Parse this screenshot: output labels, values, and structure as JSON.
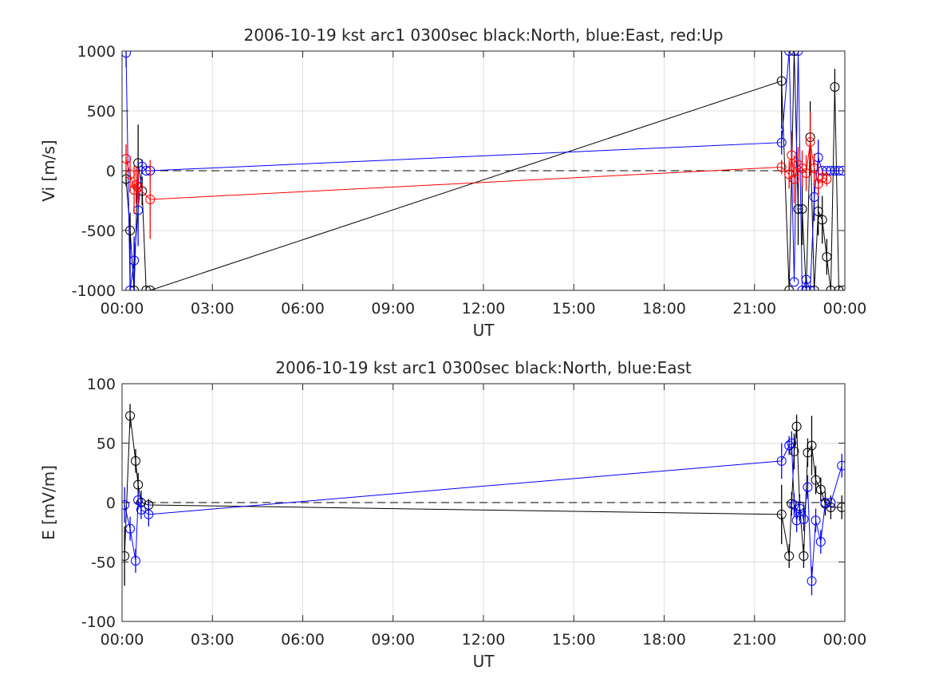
{
  "chart_data": [
    {
      "type": "line",
      "title": "2006-10-19 kst arc1 0300sec black:North, blue:East, red:Up",
      "xlabel": "UT",
      "ylabel": "Vi [m/s]",
      "xlim": [
        "00:00",
        "24:00"
      ],
      "ylim": [
        -1000,
        1000
      ],
      "grid": true,
      "x_ticks": [
        "00:00",
        "03:00",
        "06:00",
        "09:00",
        "12:00",
        "15:00",
        "18:00",
        "21:00",
        "00:00"
      ],
      "y_ticks": [
        "-1000",
        "-500",
        "0",
        "500",
        "1000"
      ],
      "y_tick_values": [
        -1000,
        -500,
        0,
        500,
        1000
      ],
      "reference_line": 0,
      "series": [
        {
          "name": "North",
          "color": "#000000",
          "x": [
            "00:08",
            "00:16",
            "00:24",
            "00:32",
            "00:40",
            "00:48",
            "00:56",
            "21:54",
            "22:09",
            "22:19",
            "22:27",
            "22:35",
            "22:43",
            "22:51",
            "22:59",
            "23:07",
            "23:15",
            "23:24",
            "23:32",
            "23:40",
            "23:48",
            "23:56"
          ],
          "y": [
            -70,
            -500,
            -1000,
            65,
            -170,
            -1000,
            -1000,
            750,
            -1000,
            1000,
            -320,
            -320,
            -1000,
            280,
            -1000,
            -340,
            -410,
            -720,
            -1000,
            700,
            -1000,
            -1000
          ],
          "err": [
            60,
            150,
            400,
            320,
            120,
            0,
            0,
            400,
            0,
            0,
            300,
            300,
            0,
            300,
            0,
            200,
            200,
            150,
            0,
            150,
            0,
            0
          ]
        },
        {
          "name": "East",
          "color": "#0000ff",
          "x": [
            "00:08",
            "00:16",
            "00:24",
            "00:32",
            "00:40",
            "00:48",
            "00:56",
            "21:54",
            "22:09",
            "22:19",
            "22:27",
            "22:35",
            "22:43",
            "22:51",
            "22:59",
            "23:07",
            "23:15",
            "23:24",
            "23:32",
            "23:40",
            "23:48",
            "23:56"
          ],
          "y": [
            985,
            -1000,
            -750,
            -330,
            35,
            0,
            0,
            235,
            1000,
            -930,
            1000,
            -1000,
            -910,
            -1000,
            -220,
            110,
            0,
            0,
            0,
            0,
            0,
            0
          ],
          "err": [
            120,
            400,
            200,
            300,
            60,
            0,
            0,
            100,
            0,
            0,
            0,
            0,
            0,
            0,
            200,
            150,
            0,
            0,
            0,
            0,
            0,
            0
          ]
        },
        {
          "name": "Up",
          "color": "#ff0000",
          "x": [
            "00:08",
            "00:16",
            "00:24",
            "00:28",
            "00:32",
            "00:56",
            "21:54",
            "22:09",
            "22:14",
            "22:19",
            "22:27",
            "22:35",
            "22:43",
            "22:51",
            "22:59",
            "23:07",
            "23:15",
            "23:24"
          ],
          "y": [
            100,
            -30,
            -160,
            -120,
            -140,
            -240,
            30,
            -30,
            130,
            -70,
            50,
            20,
            -20,
            240,
            20,
            -110,
            -60,
            -70
          ],
          "err": [
            120,
            150,
            200,
            150,
            150,
            330,
            60,
            120,
            200,
            200,
            150,
            150,
            150,
            250,
            120,
            100,
            60,
            60
          ]
        }
      ]
    },
    {
      "type": "line",
      "title": "2006-10-19 kst arc1 0300sec black:North, blue:East",
      "xlabel": "UT",
      "ylabel": "E [mV/m]",
      "xlim": [
        "00:00",
        "24:00"
      ],
      "ylim": [
        -100,
        100
      ],
      "grid": true,
      "x_ticks": [
        "00:00",
        "03:00",
        "06:00",
        "09:00",
        "12:00",
        "15:00",
        "18:00",
        "21:00",
        "00:00"
      ],
      "y_ticks": [
        "-100",
        "-50",
        "0",
        "50",
        "100"
      ],
      "y_tick_values": [
        -100,
        -50,
        0,
        50,
        100
      ],
      "reference_line": 0,
      "series": [
        {
          "name": "North",
          "color": "#000000",
          "x": [
            "00:05",
            "00:16",
            "00:27",
            "00:32",
            "00:38",
            "00:53",
            "21:54",
            "22:09",
            "22:14",
            "22:19",
            "22:24",
            "22:30",
            "22:38",
            "22:46",
            "22:54",
            "23:02",
            "23:12",
            "23:21",
            "23:32",
            "23:54"
          ],
          "y": [
            -45,
            73,
            35,
            15,
            0,
            -2,
            -10,
            -45,
            -1,
            43,
            64,
            -3,
            -45,
            42,
            48,
            19,
            11,
            -1,
            -4,
            -4
          ],
          "err": [
            25,
            10,
            10,
            10,
            10,
            5,
            25,
            10,
            10,
            15,
            10,
            10,
            10,
            12,
            25,
            12,
            10,
            10,
            10,
            10
          ]
        },
        {
          "name": "East",
          "color": "#0000ff",
          "x": [
            "00:05",
            "00:16",
            "00:27",
            "00:32",
            "00:38",
            "00:53",
            "21:54",
            "22:09",
            "22:14",
            "22:19",
            "22:24",
            "22:30",
            "22:38",
            "22:46",
            "22:54",
            "23:02",
            "23:12",
            "23:21",
            "23:32",
            "23:54"
          ],
          "y": [
            -2,
            -22,
            -49,
            2,
            -6,
            -10,
            35,
            48,
            50,
            -2,
            -15,
            -5,
            -14,
            13,
            -66,
            -15,
            -33,
            0,
            0,
            31
          ],
          "err": [
            15,
            10,
            10,
            8,
            8,
            10,
            15,
            8,
            10,
            10,
            10,
            10,
            10,
            10,
            12,
            10,
            10,
            0,
            0,
            10
          ]
        }
      ]
    }
  ]
}
